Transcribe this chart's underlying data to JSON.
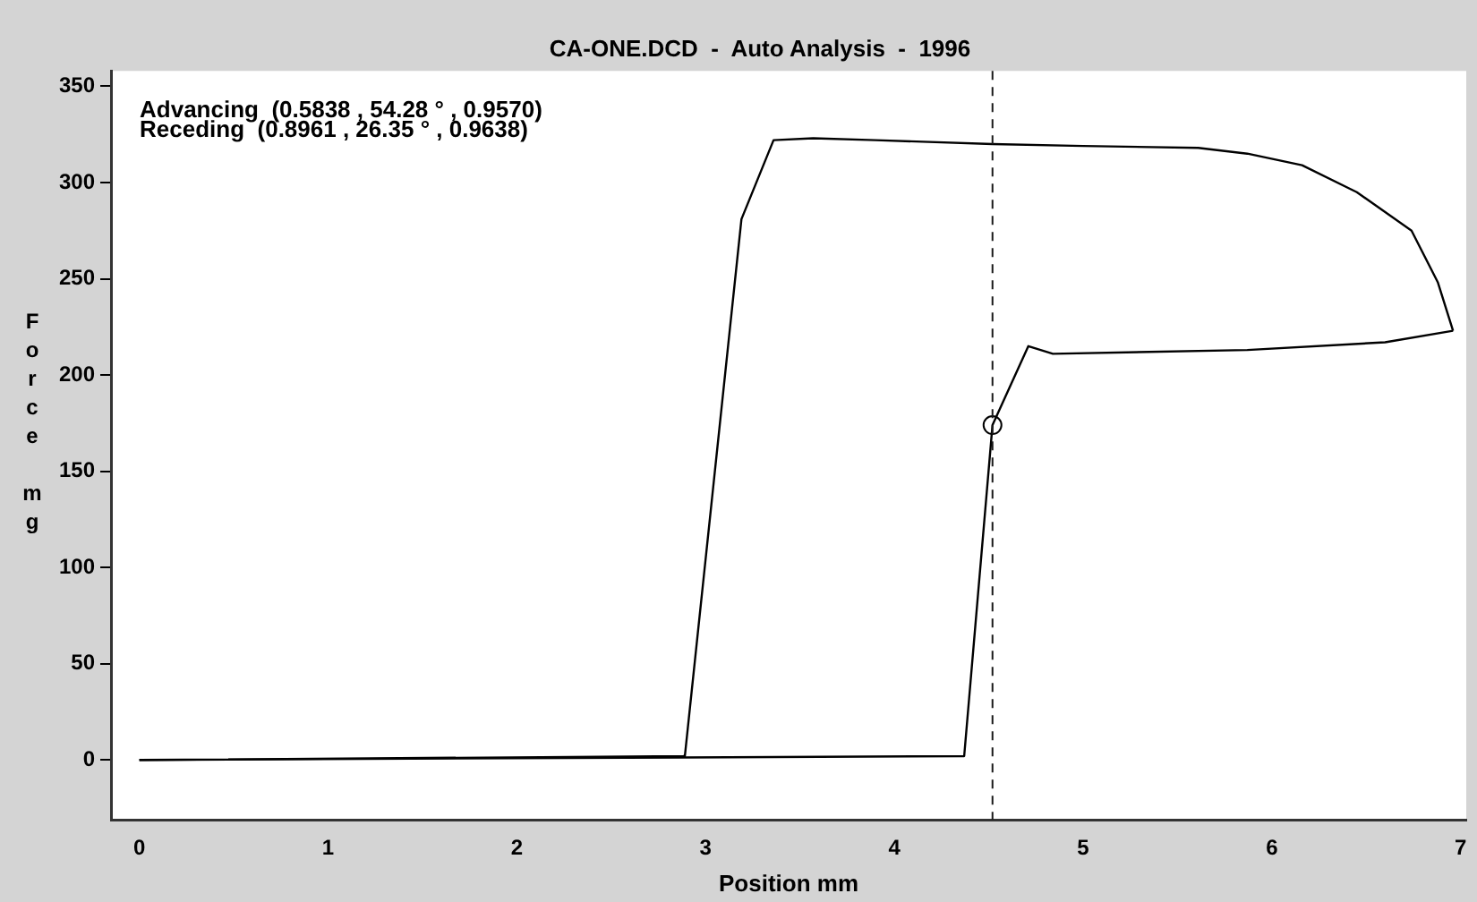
{
  "chart_data": {
    "type": "line",
    "title": "CA-ONE.DCD  -  Auto Analysis  -  1996",
    "xlabel": "Position mm",
    "ylabel": "Force mg",
    "annotations": [
      "Advancing  (0.5838 , 54.28 ° , 0.9570)",
      "Receding  (0.8961 , 26.35 ° , 0.9638)"
    ],
    "series": [
      {
        "color": "#000000",
        "x": [
          0,
          2.89,
          3.19,
          3.36,
          3.57,
          3.9,
          4.52,
          5.0,
          5.61,
          5.87,
          6.16,
          6.45,
          6.74,
          6.88,
          6.96
        ],
        "values": [
          0,
          2,
          281,
          322,
          323,
          322,
          320,
          319,
          318,
          315,
          309,
          295,
          275,
          248,
          223
        ]
      },
      {
        "color": "#000000",
        "x": [
          6.96,
          6.6,
          5.87,
          4.84,
          4.71,
          4.52,
          4.37,
          0
        ],
        "values": [
          223,
          217,
          213,
          211,
          215,
          174,
          2,
          0
        ]
      },
      {
        "type": "scatter",
        "color": "#000000",
        "marker": "circle",
        "x": [
          4.52
        ],
        "values": [
          174
        ]
      }
    ],
    "xlim": [
      -0.15,
      7.03
    ],
    "ylim": [
      -31,
      358
    ],
    "xticks": [
      0,
      1,
      2,
      3,
      4,
      5,
      6,
      7
    ],
    "yticks": [
      0,
      50,
      100,
      150,
      200,
      250,
      300,
      350
    ],
    "ref_lines": [
      {
        "axis": "x",
        "value": 4.52,
        "line_style": "dashed",
        "color": "#1a1a1a"
      }
    ],
    "grid": false,
    "legend": false,
    "marker": "none",
    "line_style": "solid"
  }
}
